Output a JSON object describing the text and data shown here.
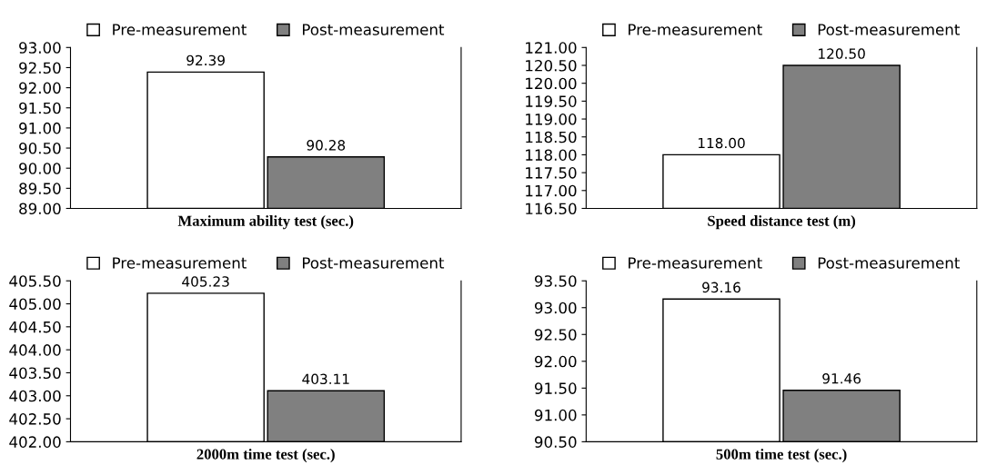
{
  "chart_data": [
    {
      "type": "bar",
      "xlabel": "Maximum ability test (sec.)",
      "categories": [
        null
      ],
      "legend": "top",
      "grid": false,
      "series": [
        {
          "name": "Pre-measurement",
          "color": "#ffffff",
          "values": [
            92.39
          ],
          "value_labels": [
            "92.39"
          ]
        },
        {
          "name": "Post-measurement",
          "color": "#808080",
          "values": [
            90.28
          ],
          "value_labels": [
            "90.28"
          ]
        }
      ],
      "ylim": [
        89,
        93
      ],
      "yticks": [
        {
          "value": 89,
          "label": "89.00"
        },
        {
          "value": 89.5,
          "label": "89.50"
        },
        {
          "value": 90,
          "label": "90.00"
        },
        {
          "value": 90.5,
          "label": "90.50"
        },
        {
          "value": 91,
          "label": "91.00"
        },
        {
          "value": 91.5,
          "label": "91.50"
        },
        {
          "value": 92,
          "label": "92.00"
        },
        {
          "value": 92.5,
          "label": "92.50"
        },
        {
          "value": 93,
          "label": "93.00"
        }
      ]
    },
    {
      "type": "bar",
      "xlabel": "Speed distance test (m)",
      "categories": [
        null
      ],
      "legend": "top",
      "grid": false,
      "series": [
        {
          "name": "Pre-measurement",
          "color": "#ffffff",
          "values": [
            118.0
          ],
          "value_labels": [
            "118.00"
          ]
        },
        {
          "name": "Post-measurement",
          "color": "#808080",
          "values": [
            120.5
          ],
          "value_labels": [
            "120.50"
          ]
        }
      ],
      "ylim": [
        116.5,
        121
      ],
      "yticks": [
        {
          "value": 116.5,
          "label": "116.50"
        },
        {
          "value": 117,
          "label": "117.00"
        },
        {
          "value": 117.5,
          "label": "117.50"
        },
        {
          "value": 118,
          "label": "118.00"
        },
        {
          "value": 118.5,
          "label": "118.50"
        },
        {
          "value": 119,
          "label": "119.00"
        },
        {
          "value": 119.5,
          "label": "119.50"
        },
        {
          "value": 120,
          "label": "120.00"
        },
        {
          "value": 120.5,
          "label": "120.50"
        },
        {
          "value": 121,
          "label": "121.00"
        }
      ]
    },
    {
      "type": "bar",
      "xlabel": "2000m time test (sec.)",
      "categories": [
        null
      ],
      "legend": "top",
      "grid": false,
      "series": [
        {
          "name": "Pre-measurement",
          "color": "#ffffff",
          "values": [
            405.23
          ],
          "value_labels": [
            "405.23"
          ]
        },
        {
          "name": "Post-measurement",
          "color": "#808080",
          "values": [
            403.11
          ],
          "value_labels": [
            "403.11"
          ]
        }
      ],
      "ylim": [
        402,
        405.5
      ],
      "yticks": [
        {
          "value": 402,
          "label": "402.00"
        },
        {
          "value": 402.5,
          "label": "402.50"
        },
        {
          "value": 403,
          "label": "403.00"
        },
        {
          "value": 403.5,
          "label": "403.50"
        },
        {
          "value": 404,
          "label": "404.00"
        },
        {
          "value": 404.5,
          "label": "404.50"
        },
        {
          "value": 405,
          "label": "405.00"
        },
        {
          "value": 405.5,
          "label": "405.50"
        }
      ]
    },
    {
      "type": "bar",
      "xlabel": "500m time test (sec.)",
      "categories": [
        null
      ],
      "legend": "top",
      "grid": false,
      "series": [
        {
          "name": "Pre-measurement",
          "color": "#ffffff",
          "values": [
            93.16
          ],
          "value_labels": [
            "93.16"
          ]
        },
        {
          "name": "Post-measurement",
          "color": "#808080",
          "values": [
            91.46
          ],
          "value_labels": [
            "91.46"
          ]
        }
      ],
      "ylim": [
        90.5,
        93.5
      ],
      "yticks": [
        {
          "value": 90.5,
          "label": "90.50"
        },
        {
          "value": 91,
          "label": "91.00"
        },
        {
          "value": 91.5,
          "label": "91.50"
        },
        {
          "value": 92,
          "label": "92.00"
        },
        {
          "value": 92.5,
          "label": "92.50"
        },
        {
          "value": 93,
          "label": "93.00"
        },
        {
          "value": 93.5,
          "label": "93.50"
        }
      ]
    }
  ]
}
